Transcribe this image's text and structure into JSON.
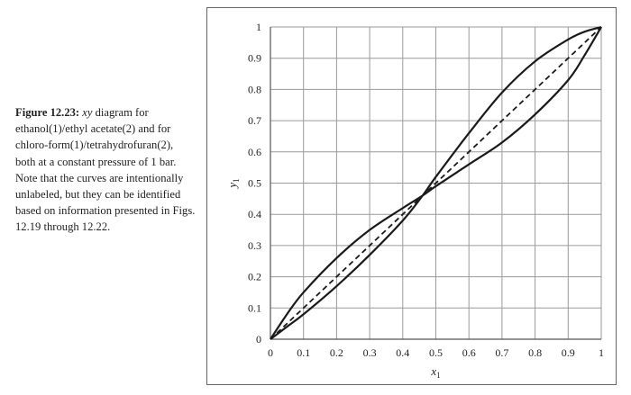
{
  "caption": {
    "lead": "Figure 12.23:",
    "var": "xy",
    "rest": "diagram for ethanol(1)/ethyl acetate(2) and for chloro-form(1)/tetrahydrofuran(2), both at a constant pressure of 1 bar. Note that the curves are intentionally unlabeled, but they can be identified based on information presented in Figs. 12.19 through 12.22."
  },
  "chart_data": {
    "type": "line",
    "title": "",
    "xlabel": "x1",
    "ylabel": "y1",
    "xlim": [
      0,
      1
    ],
    "ylim": [
      0,
      1
    ],
    "xticks": [
      "0",
      "0.1",
      "0.2",
      "0.3",
      "0.4",
      "0.5",
      "0.6",
      "0.7",
      "0.8",
      "0.9",
      "1"
    ],
    "yticks": [
      "0",
      "0.1",
      "0.2",
      "0.3",
      "0.4",
      "0.5",
      "0.6",
      "0.7",
      "0.8",
      "0.9",
      "1"
    ],
    "grid": true,
    "legend": "none",
    "series": [
      {
        "style": "dashed",
        "x": [
          0,
          1
        ],
        "y": [
          0,
          1
        ]
      },
      {
        "style": "solid",
        "x": [
          0,
          0.05,
          0.1,
          0.2,
          0.3,
          0.4,
          0.46,
          0.5,
          0.6,
          0.7,
          0.8,
          0.9,
          0.95,
          1
        ],
        "y": [
          0,
          0.04,
          0.08,
          0.17,
          0.27,
          0.38,
          0.46,
          0.52,
          0.66,
          0.79,
          0.89,
          0.96,
          0.985,
          1
        ]
      },
      {
        "style": "solid",
        "x": [
          0,
          0.05,
          0.1,
          0.2,
          0.3,
          0.4,
          0.46,
          0.5,
          0.6,
          0.7,
          0.8,
          0.9,
          0.95,
          1
        ],
        "y": [
          0,
          0.08,
          0.15,
          0.26,
          0.35,
          0.42,
          0.46,
          0.49,
          0.56,
          0.63,
          0.72,
          0.83,
          0.91,
          1
        ]
      }
    ]
  }
}
